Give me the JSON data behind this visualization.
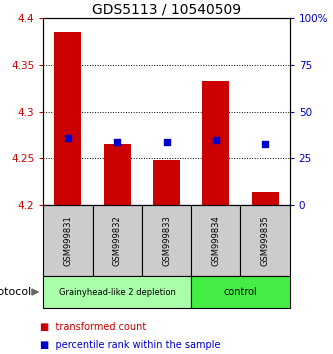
{
  "title": "GDS5113 / 10540509",
  "samples": [
    "GSM999831",
    "GSM999832",
    "GSM999833",
    "GSM999834",
    "GSM999835"
  ],
  "bar_bottoms": [
    4.2,
    4.2,
    4.2,
    4.2,
    4.2
  ],
  "bar_tops": [
    4.385,
    4.265,
    4.248,
    4.332,
    4.214
  ],
  "percentile_values": [
    4.272,
    4.268,
    4.267,
    4.27,
    4.265
  ],
  "ylim": [
    4.2,
    4.4
  ],
  "yticks_left": [
    4.2,
    4.25,
    4.3,
    4.35,
    4.4
  ],
  "yticks_right": [
    0,
    25,
    50,
    75,
    100
  ],
  "bar_color": "#cc0000",
  "percentile_color": "#0000cc",
  "group1_samples": [
    0,
    1,
    2
  ],
  "group2_samples": [
    3,
    4
  ],
  "group1_label": "Grainyhead-like 2 depletion",
  "group2_label": "control",
  "group1_color": "#aaffaa",
  "group2_color": "#44ee44",
  "protocol_label": "protocol",
  "legend_red": "transformed count",
  "legend_blue": "percentile rank within the sample",
  "tick_label_color_left": "#cc0000",
  "tick_label_color_right": "#0000bb",
  "bar_width": 0.55,
  "square_size": 22,
  "title_fontsize": 10,
  "tick_fontsize": 7.5,
  "sample_fontsize": 6,
  "group_fontsize": 7,
  "legend_fontsize": 7,
  "protocol_fontsize": 8
}
